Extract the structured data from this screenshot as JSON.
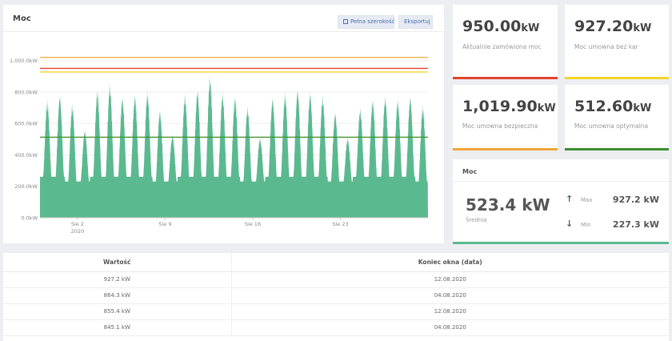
{
  "chart_panel": {
    "title": "Moc",
    "full_width_label": "Pełna szerokość",
    "export_label": "Eksportuj"
  },
  "stats": [
    {
      "value": "950.00",
      "unit": "kW",
      "desc": "Aktualnie zamówiona moc",
      "color": "#e0442c"
    },
    {
      "value": "927.20",
      "unit": "kW",
      "desc": "Moc umowna bez kar",
      "color": "#f2d52b"
    },
    {
      "value": "1,019.90",
      "unit": "kW",
      "desc": "Moc umowna bezpieczna",
      "color": "#f0a63a"
    },
    {
      "value": "512.60",
      "unit": "kW",
      "desc": "Moc umowna optymalna",
      "color": "#3d8f2f"
    }
  ],
  "moc_summary": {
    "title": "Moc",
    "value": "523.4 kW",
    "sub_label": "Średnia",
    "max_label": "Max",
    "max_value": "927.2 kW",
    "min_label": "Min",
    "min_value": "227.3 kW"
  },
  "table": {
    "headers": [
      "Wartość",
      "Koniec okna (data)"
    ],
    "rows": [
      [
        "927.2 kW",
        "12.08.2020"
      ],
      [
        "864.3 kW",
        "04.08.2020"
      ],
      [
        "855.4 kW",
        "12.08.2020"
      ],
      [
        "845.1 kW",
        "04.08.2020"
      ]
    ]
  },
  "chart_data": {
    "type": "area",
    "x_start": "2020-07-30",
    "x_end": "2020-08-30",
    "x_ticks": [
      {
        "date": "2020-08-02",
        "label": "Sie 2",
        "sublabel": "2020"
      },
      {
        "date": "2020-08-09",
        "label": "Sie 9",
        "sublabel": ""
      },
      {
        "date": "2020-08-16",
        "label": "Sie 16",
        "sublabel": ""
      },
      {
        "date": "2020-08-23",
        "label": "Sie 23",
        "sublabel": ""
      }
    ],
    "ylim": [
      0,
      1100
    ],
    "y_ticks": [
      0,
      200,
      400,
      600,
      800,
      1000
    ],
    "y_tick_labels": [
      "0.0kW",
      "200.0kW",
      "400.0kW",
      "600.0kW",
      "800.0kW",
      "1,000.0kW"
    ],
    "area_color": "#5bb98f",
    "daily_peaks": [
      {
        "date": "2020-07-30",
        "peak": 760
      },
      {
        "date": "2020-07-31",
        "peak": 800
      },
      {
        "date": "2020-08-01",
        "peak": 740
      },
      {
        "date": "2020-08-02",
        "peak": 570
      },
      {
        "date": "2020-08-03",
        "peak": 830
      },
      {
        "date": "2020-08-04",
        "peak": 864
      },
      {
        "date": "2020-08-05",
        "peak": 790
      },
      {
        "date": "2020-08-06",
        "peak": 800
      },
      {
        "date": "2020-08-07",
        "peak": 820
      },
      {
        "date": "2020-08-08",
        "peak": 700
      },
      {
        "date": "2020-08-09",
        "peak": 540
      },
      {
        "date": "2020-08-10",
        "peak": 800
      },
      {
        "date": "2020-08-11",
        "peak": 835
      },
      {
        "date": "2020-08-12",
        "peak": 927
      },
      {
        "date": "2020-08-13",
        "peak": 810
      },
      {
        "date": "2020-08-14",
        "peak": 790
      },
      {
        "date": "2020-08-15",
        "peak": 720
      },
      {
        "date": "2020-08-16",
        "peak": 520
      },
      {
        "date": "2020-08-17",
        "peak": 780
      },
      {
        "date": "2020-08-18",
        "peak": 810
      },
      {
        "date": "2020-08-19",
        "peak": 840
      },
      {
        "date": "2020-08-20",
        "peak": 820
      },
      {
        "date": "2020-08-21",
        "peak": 790
      },
      {
        "date": "2020-08-22",
        "peak": 690
      },
      {
        "date": "2020-08-23",
        "peak": 520
      },
      {
        "date": "2020-08-24",
        "peak": 710
      },
      {
        "date": "2020-08-25",
        "peak": 770
      },
      {
        "date": "2020-08-26",
        "peak": 790
      },
      {
        "date": "2020-08-27",
        "peak": 770
      },
      {
        "date": "2020-08-28",
        "peak": 790
      },
      {
        "date": "2020-08-29",
        "peak": 730
      }
    ],
    "daily_min": 260,
    "weekend_min": 230,
    "reference_lines": [
      {
        "value": 1019.9,
        "color": "#f0a63a"
      },
      {
        "value": 950,
        "color": "#e0442c"
      },
      {
        "value": 927.2,
        "color": "#f2d52b"
      },
      {
        "value": 512.6,
        "color": "#3d8f2f"
      }
    ]
  }
}
